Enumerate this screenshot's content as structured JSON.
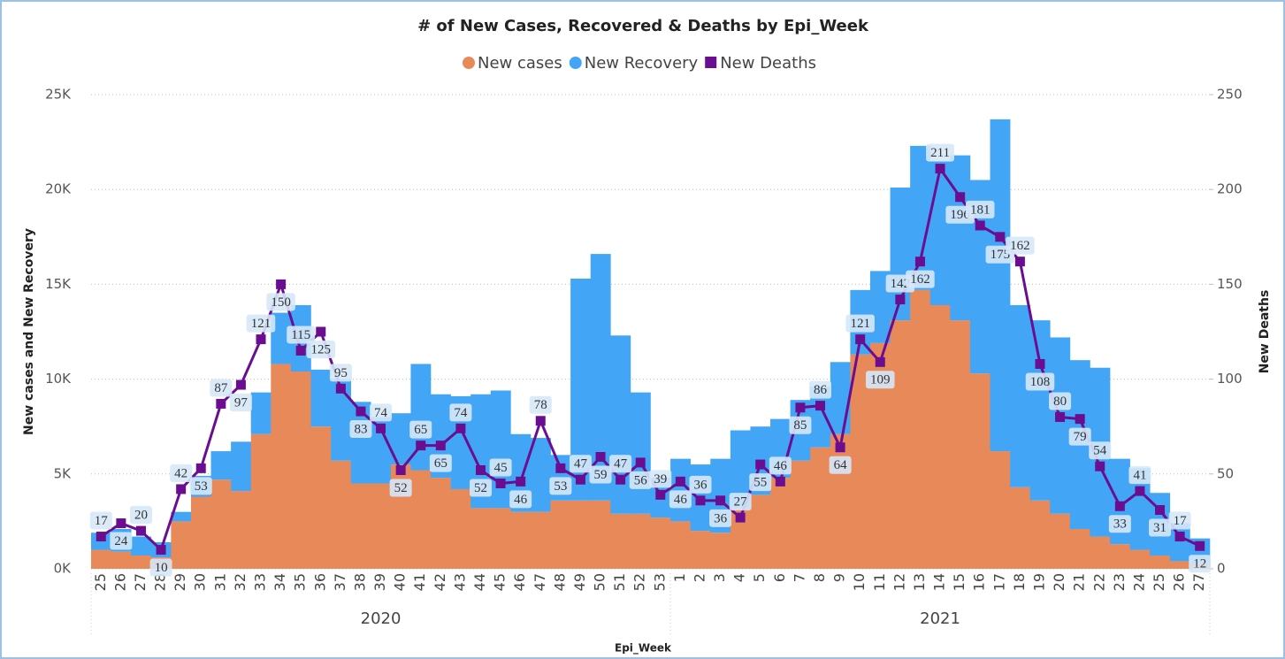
{
  "chart_data": {
    "type": "combo",
    "title": "# of New Cases, Recovered & Deaths by Epi_Week",
    "xlabel": "Epi_Week",
    "ylabel": "New cases and New Recovery",
    "y2label": "New Deaths",
    "groups": [
      {
        "label": "2020",
        "categories": [
          "25",
          "26",
          "27",
          "28",
          "29",
          "30",
          "31",
          "32",
          "33",
          "34",
          "35",
          "36",
          "37",
          "38",
          "39",
          "40",
          "41",
          "42",
          "43",
          "44",
          "45",
          "46",
          "47",
          "48",
          "49",
          "50",
          "51",
          "52",
          "53"
        ]
      },
      {
        "label": "2021",
        "categories": [
          "1",
          "2",
          "3",
          "4",
          "5",
          "6",
          "7",
          "8",
          "9",
          "10",
          "11",
          "12",
          "13",
          "14",
          "15",
          "16",
          "17",
          "18",
          "19",
          "20",
          "21",
          "22",
          "23",
          "24",
          "25",
          "26",
          "27"
        ]
      }
    ],
    "series": [
      {
        "name": "New cases",
        "color": "#e8895a",
        "values": [
          1000,
          900,
          700,
          600,
          2500,
          3800,
          4700,
          4100,
          7100,
          10800,
          10400,
          7500,
          5700,
          4500,
          4500,
          5500,
          5200,
          4800,
          4200,
          3200,
          3200,
          3000,
          3000,
          3600,
          3600,
          3600,
          2900,
          2900,
          2700,
          2500,
          2000,
          1900,
          3200,
          3900,
          4800,
          5700,
          6400,
          7100,
          11300,
          11900,
          13100,
          14700,
          13900,
          13100,
          10300,
          6200,
          4300,
          3600,
          2900,
          2100,
          1700,
          1300,
          1000,
          700,
          400,
          300
        ]
      },
      {
        "name": "New Recovery",
        "color": "#42a5f5",
        "values": [
          900,
          1200,
          1000,
          800,
          500,
          1100,
          1500,
          2600,
          2200,
          2700,
          3500,
          3000,
          4300,
          4300,
          3500,
          2700,
          5600,
          4400,
          4900,
          6000,
          6200,
          4100,
          3900,
          2400,
          11700,
          13000,
          9400,
          6400,
          2100,
          3300,
          3500,
          3900,
          4100,
          3600,
          3100,
          3200,
          3200,
          3800,
          3400,
          3800,
          7000,
          7600,
          7600,
          8700,
          10200,
          17500,
          9600,
          9500,
          9300,
          8900,
          8900,
          4500,
          4300,
          3300,
          2000,
          1300
        ]
      },
      {
        "name": "New Deaths",
        "color": "#6a0d91",
        "axis": "y2",
        "values": [
          17,
          24,
          20,
          10,
          42,
          53,
          87,
          97,
          121,
          150,
          115,
          125,
          95,
          83,
          74,
          52,
          65,
          65,
          74,
          52,
          45,
          46,
          78,
          53,
          47,
          59,
          47,
          56,
          39,
          46,
          36,
          36,
          27,
          55,
          46,
          85,
          86,
          64,
          121,
          109,
          142,
          162,
          211,
          196,
          181,
          175,
          162,
          108,
          80,
          79,
          54,
          33,
          41,
          31,
          17,
          12
        ]
      }
    ],
    "ylim": [
      0,
      25000
    ],
    "yticks": [
      {
        "value": 0,
        "label": "0K"
      },
      {
        "value": 5000,
        "label": "5K"
      },
      {
        "value": 10000,
        "label": "10K"
      },
      {
        "value": 15000,
        "label": "15K"
      },
      {
        "value": 20000,
        "label": "20K"
      },
      {
        "value": 25000,
        "label": "25K"
      }
    ],
    "y2lim": [
      0,
      250
    ],
    "y2ticks": [
      0,
      50,
      100,
      150,
      200,
      250
    ],
    "grid": true,
    "legend": "top"
  }
}
